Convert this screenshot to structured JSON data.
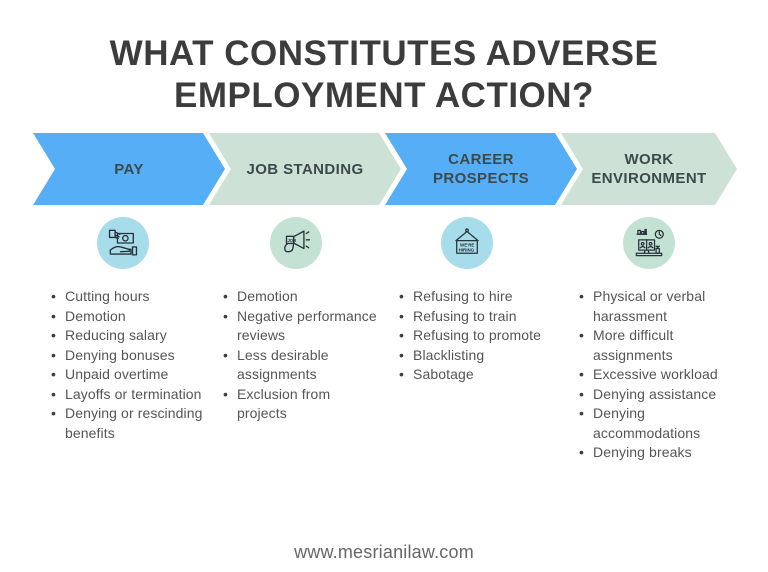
{
  "title": {
    "line1": "WHAT CONSTITUTES ADVERSE",
    "line2": "EMPLOYMENT ACTION?"
  },
  "columns": [
    {
      "label": "PAY",
      "theme": "blue",
      "icon": "hand-giving-money-icon",
      "items": [
        "Cutting hours",
        "Demotion",
        "Reducing salary",
        "Denying bonuses",
        "Unpaid overtime",
        "Layoffs or termination",
        "Denying or rescinding benefits"
      ]
    },
    {
      "label": "JOB STANDING",
      "theme": "mint",
      "icon": "job-megaphone-icon",
      "items": [
        "Demotion",
        "Negative performance reviews",
        "Less desirable assignments",
        "Exclusion from projects"
      ]
    },
    {
      "label": "CAREER PROSPECTS",
      "theme": "blue",
      "icon": "hiring-sign-icon",
      "items": [
        "Refusing to hire",
        "Refusing to train",
        "Refusing to promote",
        "Blacklisting",
        "Sabotage"
      ]
    },
    {
      "label": "WORK ENVIRONMENT",
      "theme": "mint",
      "icon": "workspace-desk-icon",
      "items": [
        "Physical or verbal harassment",
        "More difficult assignments",
        "Excessive workload",
        "Denying assistance",
        "Denying accommodations",
        "Denying breaks"
      ]
    }
  ],
  "icon_texts": {
    "megaphone_label": "JOB",
    "hiring_line1": "WE'RE",
    "hiring_line2": "HIRING"
  },
  "footer": {
    "website": "www.mesrianilaw.com"
  },
  "colors": {
    "arrow_blue": "#56aef7",
    "arrow_mint": "#cde1d6",
    "icon_circle_blue": "#a7dcea",
    "icon_circle_mint": "#c4e2d3",
    "title_text": "#3c3c3c",
    "arrow_label_text": "#3d4a4c",
    "list_text": "#555555",
    "footer_text": "#666666",
    "icon_stroke": "#28343b"
  }
}
